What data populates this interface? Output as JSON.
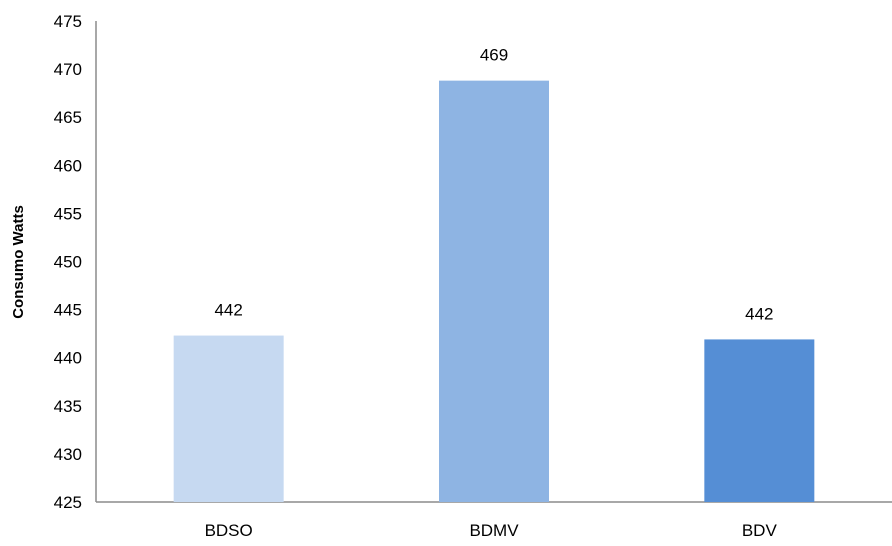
{
  "chart_data": {
    "type": "bar",
    "title": "",
    "xlabel": "",
    "ylabel": "Consumo Watts",
    "categories": [
      "BDSO",
      "BDMV",
      "BDV"
    ],
    "values": [
      442.3,
      468.8,
      441.9
    ],
    "data_labels": [
      "442",
      "469",
      "442"
    ],
    "bar_colors": [
      "#c6d9f1",
      "#8eb4e3",
      "#558ed5"
    ],
    "ylim": [
      425,
      475
    ],
    "yticks": [
      "425",
      "430",
      "435",
      "440",
      "445",
      "450",
      "455",
      "460",
      "465",
      "470",
      "475"
    ],
    "grid": false,
    "legend": "none"
  }
}
